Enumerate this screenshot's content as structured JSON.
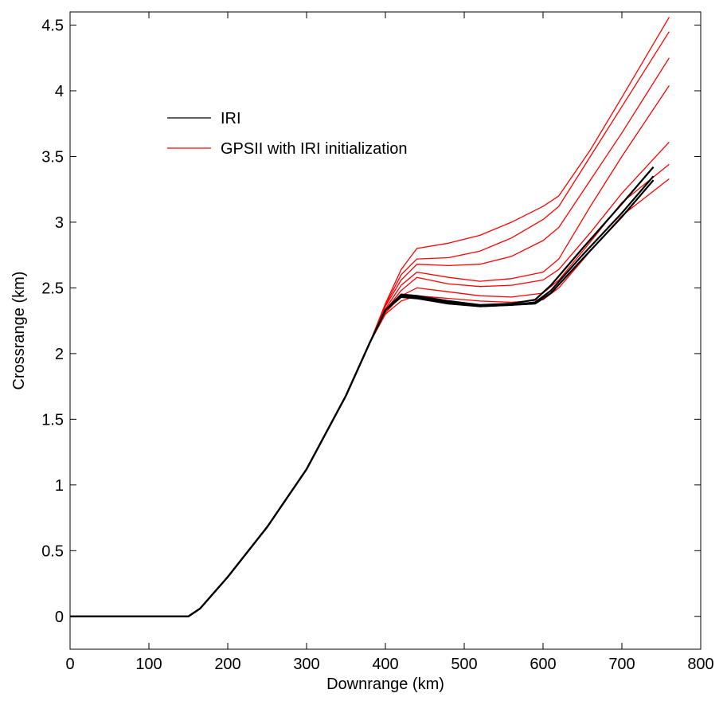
{
  "chart_data": {
    "type": "line",
    "title": "",
    "xlabel": "Downrange (km)",
    "ylabel": "Crossrange (km)",
    "xlim": [
      0,
      800
    ],
    "ylim": [
      -0.25,
      4.6
    ],
    "xticks": [
      0,
      100,
      200,
      300,
      400,
      500,
      600,
      700,
      800
    ],
    "xtick_labels": [
      "0",
      "100",
      "200",
      "300",
      "400",
      "500",
      "600",
      "700",
      "800"
    ],
    "yticks": [
      0,
      0.5,
      1,
      1.5,
      2,
      2.5,
      3,
      3.5,
      4,
      4.5
    ],
    "ytick_labels": [
      "0",
      "0.5",
      "1",
      "1.5",
      "2",
      "2.5",
      "3",
      "3.5",
      "4",
      "4.5"
    ],
    "grid": false,
    "legend": {
      "position": "upper-left",
      "entries": [
        {
          "label": "IRI",
          "color": "#000000"
        },
        {
          "label": "GPSII with IRI initialization",
          "color": "#ff0000"
        }
      ]
    },
    "series": [
      {
        "group": "IRI",
        "color": "#000000",
        "x": [
          0,
          150,
          165,
          200,
          250,
          300,
          350,
          380,
          400,
          420,
          440,
          480,
          520,
          560,
          590,
          610,
          650,
          700,
          740
        ],
        "y": [
          0,
          0,
          0.06,
          0.3,
          0.68,
          1.12,
          1.68,
          2.08,
          2.33,
          2.45,
          2.44,
          2.4,
          2.37,
          2.38,
          2.41,
          2.52,
          2.8,
          3.14,
          3.42
        ]
      },
      {
        "group": "IRI",
        "color": "#000000",
        "x": [
          0,
          150,
          165,
          200,
          250,
          300,
          350,
          380,
          400,
          420,
          440,
          480,
          520,
          560,
          590,
          610,
          650,
          700,
          740
        ],
        "y": [
          0,
          0,
          0.06,
          0.3,
          0.68,
          1.12,
          1.68,
          2.08,
          2.33,
          2.44,
          2.43,
          2.39,
          2.36,
          2.37,
          2.39,
          2.48,
          2.75,
          3.07,
          3.35
        ]
      },
      {
        "group": "IRI",
        "color": "#000000",
        "x": [
          0,
          150,
          165,
          200,
          250,
          300,
          350,
          380,
          400,
          420,
          440,
          480,
          520,
          560,
          590,
          610,
          650,
          700,
          740
        ],
        "y": [
          0,
          0,
          0.06,
          0.3,
          0.68,
          1.12,
          1.68,
          2.08,
          2.33,
          2.43,
          2.42,
          2.38,
          2.36,
          2.37,
          2.38,
          2.46,
          2.72,
          3.04,
          3.32
        ]
      },
      {
        "group": "GPSII",
        "color": "#ff0000",
        "x": [
          0,
          150,
          165,
          200,
          250,
          300,
          350,
          380,
          400,
          420,
          440,
          480,
          520,
          560,
          600,
          620,
          660,
          700,
          760
        ],
        "y": [
          0,
          0,
          0.06,
          0.3,
          0.68,
          1.12,
          1.68,
          2.08,
          2.38,
          2.64,
          2.8,
          2.84,
          2.9,
          3.0,
          3.12,
          3.2,
          3.55,
          3.95,
          4.56
        ]
      },
      {
        "group": "GPSII",
        "color": "#ff0000",
        "x": [
          0,
          150,
          165,
          200,
          250,
          300,
          350,
          380,
          400,
          420,
          440,
          480,
          520,
          560,
          600,
          620,
          660,
          700,
          760
        ],
        "y": [
          0,
          0,
          0.06,
          0.3,
          0.68,
          1.12,
          1.68,
          2.08,
          2.37,
          2.6,
          2.72,
          2.73,
          2.78,
          2.88,
          3.02,
          3.12,
          3.5,
          3.88,
          4.45
        ]
      },
      {
        "group": "GPSII",
        "color": "#ff0000",
        "x": [
          0,
          150,
          165,
          200,
          250,
          300,
          350,
          380,
          400,
          420,
          440,
          480,
          520,
          560,
          600,
          620,
          660,
          700,
          760
        ],
        "y": [
          0,
          0,
          0.06,
          0.3,
          0.68,
          1.12,
          1.68,
          2.08,
          2.36,
          2.56,
          2.68,
          2.67,
          2.68,
          2.74,
          2.86,
          2.96,
          3.32,
          3.68,
          4.25
        ]
      },
      {
        "group": "GPSII",
        "color": "#ff0000",
        "x": [
          0,
          150,
          165,
          200,
          250,
          300,
          350,
          380,
          400,
          420,
          440,
          480,
          520,
          560,
          600,
          620,
          660,
          700,
          760
        ],
        "y": [
          0,
          0,
          0.06,
          0.3,
          0.68,
          1.12,
          1.68,
          2.08,
          2.34,
          2.52,
          2.62,
          2.58,
          2.55,
          2.57,
          2.62,
          2.72,
          3.12,
          3.5,
          4.04
        ]
      },
      {
        "group": "GPSII",
        "color": "#ff0000",
        "x": [
          0,
          150,
          165,
          200,
          250,
          300,
          350,
          380,
          400,
          420,
          440,
          480,
          520,
          560,
          600,
          620,
          660,
          700,
          760
        ],
        "y": [
          0,
          0,
          0.06,
          0.3,
          0.68,
          1.12,
          1.68,
          2.08,
          2.33,
          2.48,
          2.58,
          2.53,
          2.51,
          2.52,
          2.56,
          2.64,
          2.92,
          3.22,
          3.61
        ]
      },
      {
        "group": "GPSII",
        "color": "#ff0000",
        "x": [
          0,
          150,
          165,
          200,
          250,
          300,
          350,
          380,
          400,
          420,
          440,
          480,
          520,
          560,
          600,
          620,
          660,
          700,
          760
        ],
        "y": [
          0,
          0,
          0.06,
          0.3,
          0.68,
          1.12,
          1.68,
          2.08,
          2.31,
          2.44,
          2.5,
          2.47,
          2.44,
          2.43,
          2.46,
          2.56,
          2.85,
          3.15,
          3.44
        ]
      },
      {
        "group": "GPSII",
        "color": "#ff0000",
        "x": [
          0,
          150,
          165,
          200,
          250,
          300,
          350,
          380,
          400,
          420,
          440,
          480,
          520,
          560,
          600,
          620,
          660,
          700,
          760
        ],
        "y": [
          0,
          0,
          0.06,
          0.3,
          0.68,
          1.12,
          1.68,
          2.08,
          2.3,
          2.4,
          2.44,
          2.42,
          2.4,
          2.39,
          2.41,
          2.5,
          2.78,
          3.05,
          3.33
        ]
      }
    ]
  }
}
